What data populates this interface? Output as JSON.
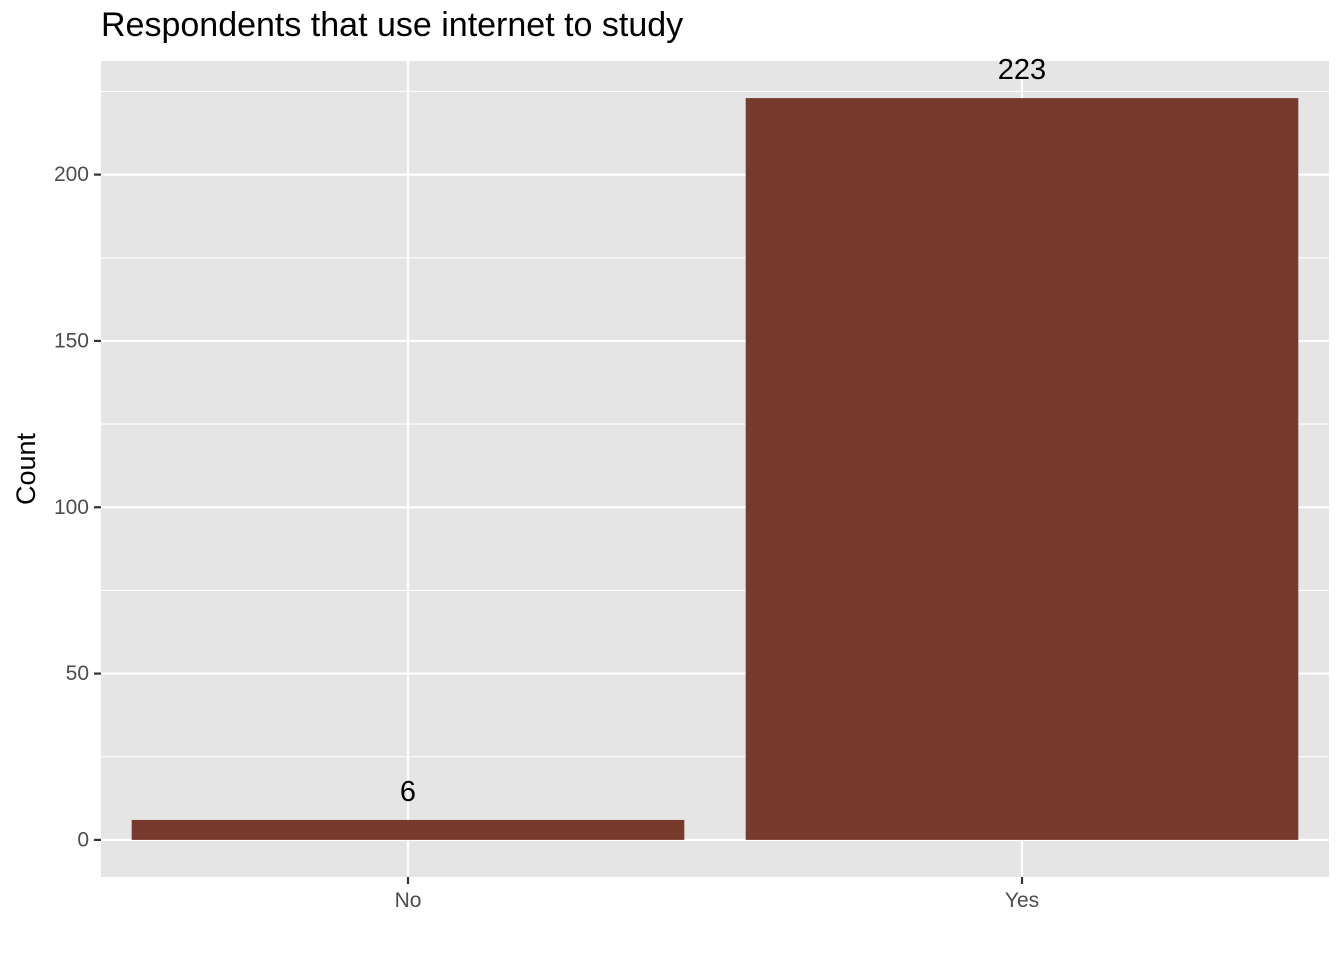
{
  "chart_data": {
    "type": "bar",
    "title": "Respondents that use internet to study",
    "xlabel": "",
    "ylabel": "Count",
    "categories": [
      "No",
      "Yes"
    ],
    "values": [
      6,
      223
    ],
    "data_labels": [
      "6",
      "223"
    ],
    "yticks": [
      0,
      50,
      100,
      150,
      200
    ],
    "ytick_labels": [
      "0",
      "50",
      "100",
      "150",
      "200"
    ],
    "ylim": [
      -11.15,
      234.15
    ],
    "grid": true,
    "legend": "none",
    "colors": {
      "bar": "#773A2D",
      "panel_background": "#E5E5E5",
      "grid_line": "#FFFFFF",
      "tick_label": "#4D4D4D",
      "text": "#000000"
    }
  }
}
